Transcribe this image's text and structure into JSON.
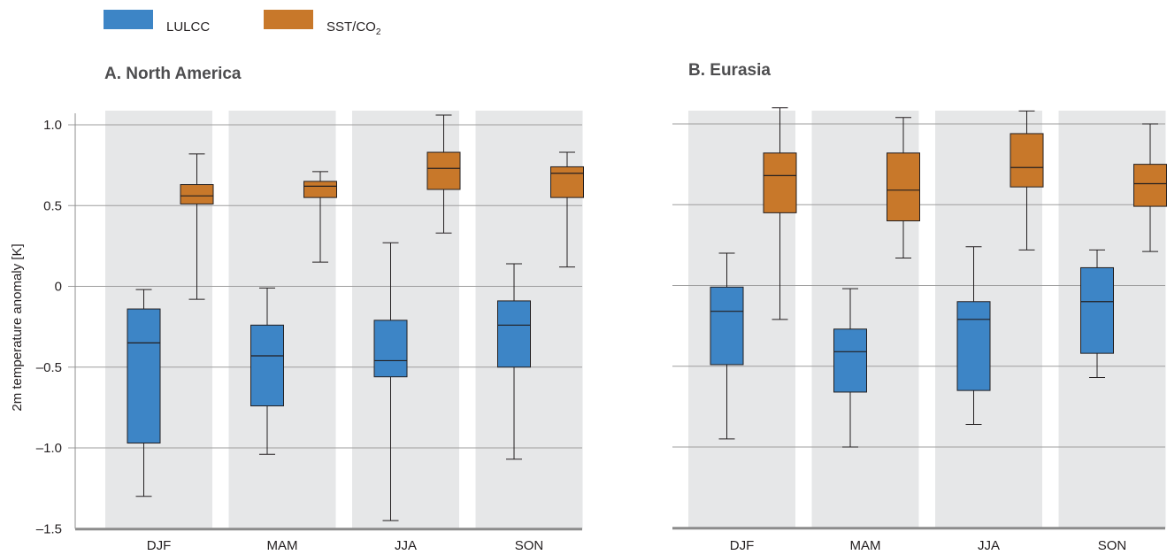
{
  "legend": {
    "items": [
      {
        "label": "LULCC",
        "color": "#3d85c6"
      },
      {
        "label": "SST/CO",
        "sub": "2",
        "color": "#c8782a"
      }
    ]
  },
  "colors": {
    "panel_band": "#e6e7e8",
    "gridline": "#9d9d9d",
    "axis": "#8c8c8c",
    "whisker": "#231f20"
  },
  "chart_data": [
    {
      "type": "box",
      "title": "A. North America",
      "ylabel": "2m temperature anomaly [K]",
      "ylim": [
        -1.5,
        1.1
      ],
      "yticks": [
        1.0,
        0.5,
        0,
        -0.5,
        -1.0,
        -1.5
      ],
      "ytick_labels": [
        "1.0",
        "0.5",
        "0",
        "–0.5",
        "–1.0",
        "–1.5"
      ],
      "show_ytick_labels": true,
      "categories": [
        "DJF",
        "MAM",
        "JJA",
        "SON"
      ],
      "series": [
        {
          "name": "LULCC",
          "boxes": [
            {
              "min": -1.3,
              "q1": -0.97,
              "median": -0.35,
              "q3": -0.14,
              "max": -0.02
            },
            {
              "min": -1.04,
              "q1": -0.74,
              "median": -0.43,
              "q3": -0.24,
              "max": -0.01
            },
            {
              "min": -1.45,
              "q1": -0.56,
              "median": -0.46,
              "q3": -0.21,
              "max": 0.27
            },
            {
              "min": -1.07,
              "q1": -0.5,
              "median": -0.24,
              "q3": -0.09,
              "max": 0.14
            }
          ]
        },
        {
          "name": "SST/CO2",
          "boxes": [
            {
              "min": -0.08,
              "q1": 0.51,
              "median": 0.56,
              "q3": 0.63,
              "max": 0.82
            },
            {
              "min": 0.15,
              "q1": 0.55,
              "median": 0.62,
              "q3": 0.65,
              "max": 0.71
            },
            {
              "min": 0.33,
              "q1": 0.6,
              "median": 0.73,
              "q3": 0.83,
              "max": 1.06
            },
            {
              "min": 0.12,
              "q1": 0.55,
              "median": 0.7,
              "q3": 0.74,
              "max": 0.83
            }
          ]
        }
      ]
    },
    {
      "type": "box",
      "title": "B. Eurasia",
      "ylabel": "",
      "ylim": [
        -1.5,
        1.1
      ],
      "yticks": [
        1.0,
        0.5,
        0,
        -0.5,
        -1.0,
        -1.5
      ],
      "ytick_labels": [
        "1.0",
        "0.5",
        "0",
        "–0.5",
        "–1.0",
        "–1.5"
      ],
      "show_ytick_labels": false,
      "categories": [
        "DJF",
        "MAM",
        "JJA",
        "SON"
      ],
      "series": [
        {
          "name": "LULCC",
          "boxes": [
            {
              "min": -0.95,
              "q1": -0.49,
              "median": -0.16,
              "q3": -0.01,
              "max": 0.2
            },
            {
              "min": -1.0,
              "q1": -0.66,
              "median": -0.41,
              "q3": -0.27,
              "max": -0.02
            },
            {
              "min": -0.86,
              "q1": -0.65,
              "median": -0.21,
              "q3": -0.1,
              "max": 0.24
            },
            {
              "min": -0.57,
              "q1": -0.42,
              "median": -0.1,
              "q3": 0.11,
              "max": 0.22
            }
          ]
        },
        {
          "name": "SST/CO2",
          "boxes": [
            {
              "min": -0.21,
              "q1": 0.45,
              "median": 0.68,
              "q3": 0.82,
              "max": 1.1
            },
            {
              "min": 0.17,
              "q1": 0.4,
              "median": 0.59,
              "q3": 0.82,
              "max": 1.04
            },
            {
              "min": 0.22,
              "q1": 0.61,
              "median": 0.73,
              "q3": 0.94,
              "max": 1.08
            },
            {
              "min": 0.21,
              "q1": 0.49,
              "median": 0.63,
              "q3": 0.75,
              "max": 1.0
            }
          ]
        }
      ]
    }
  ]
}
